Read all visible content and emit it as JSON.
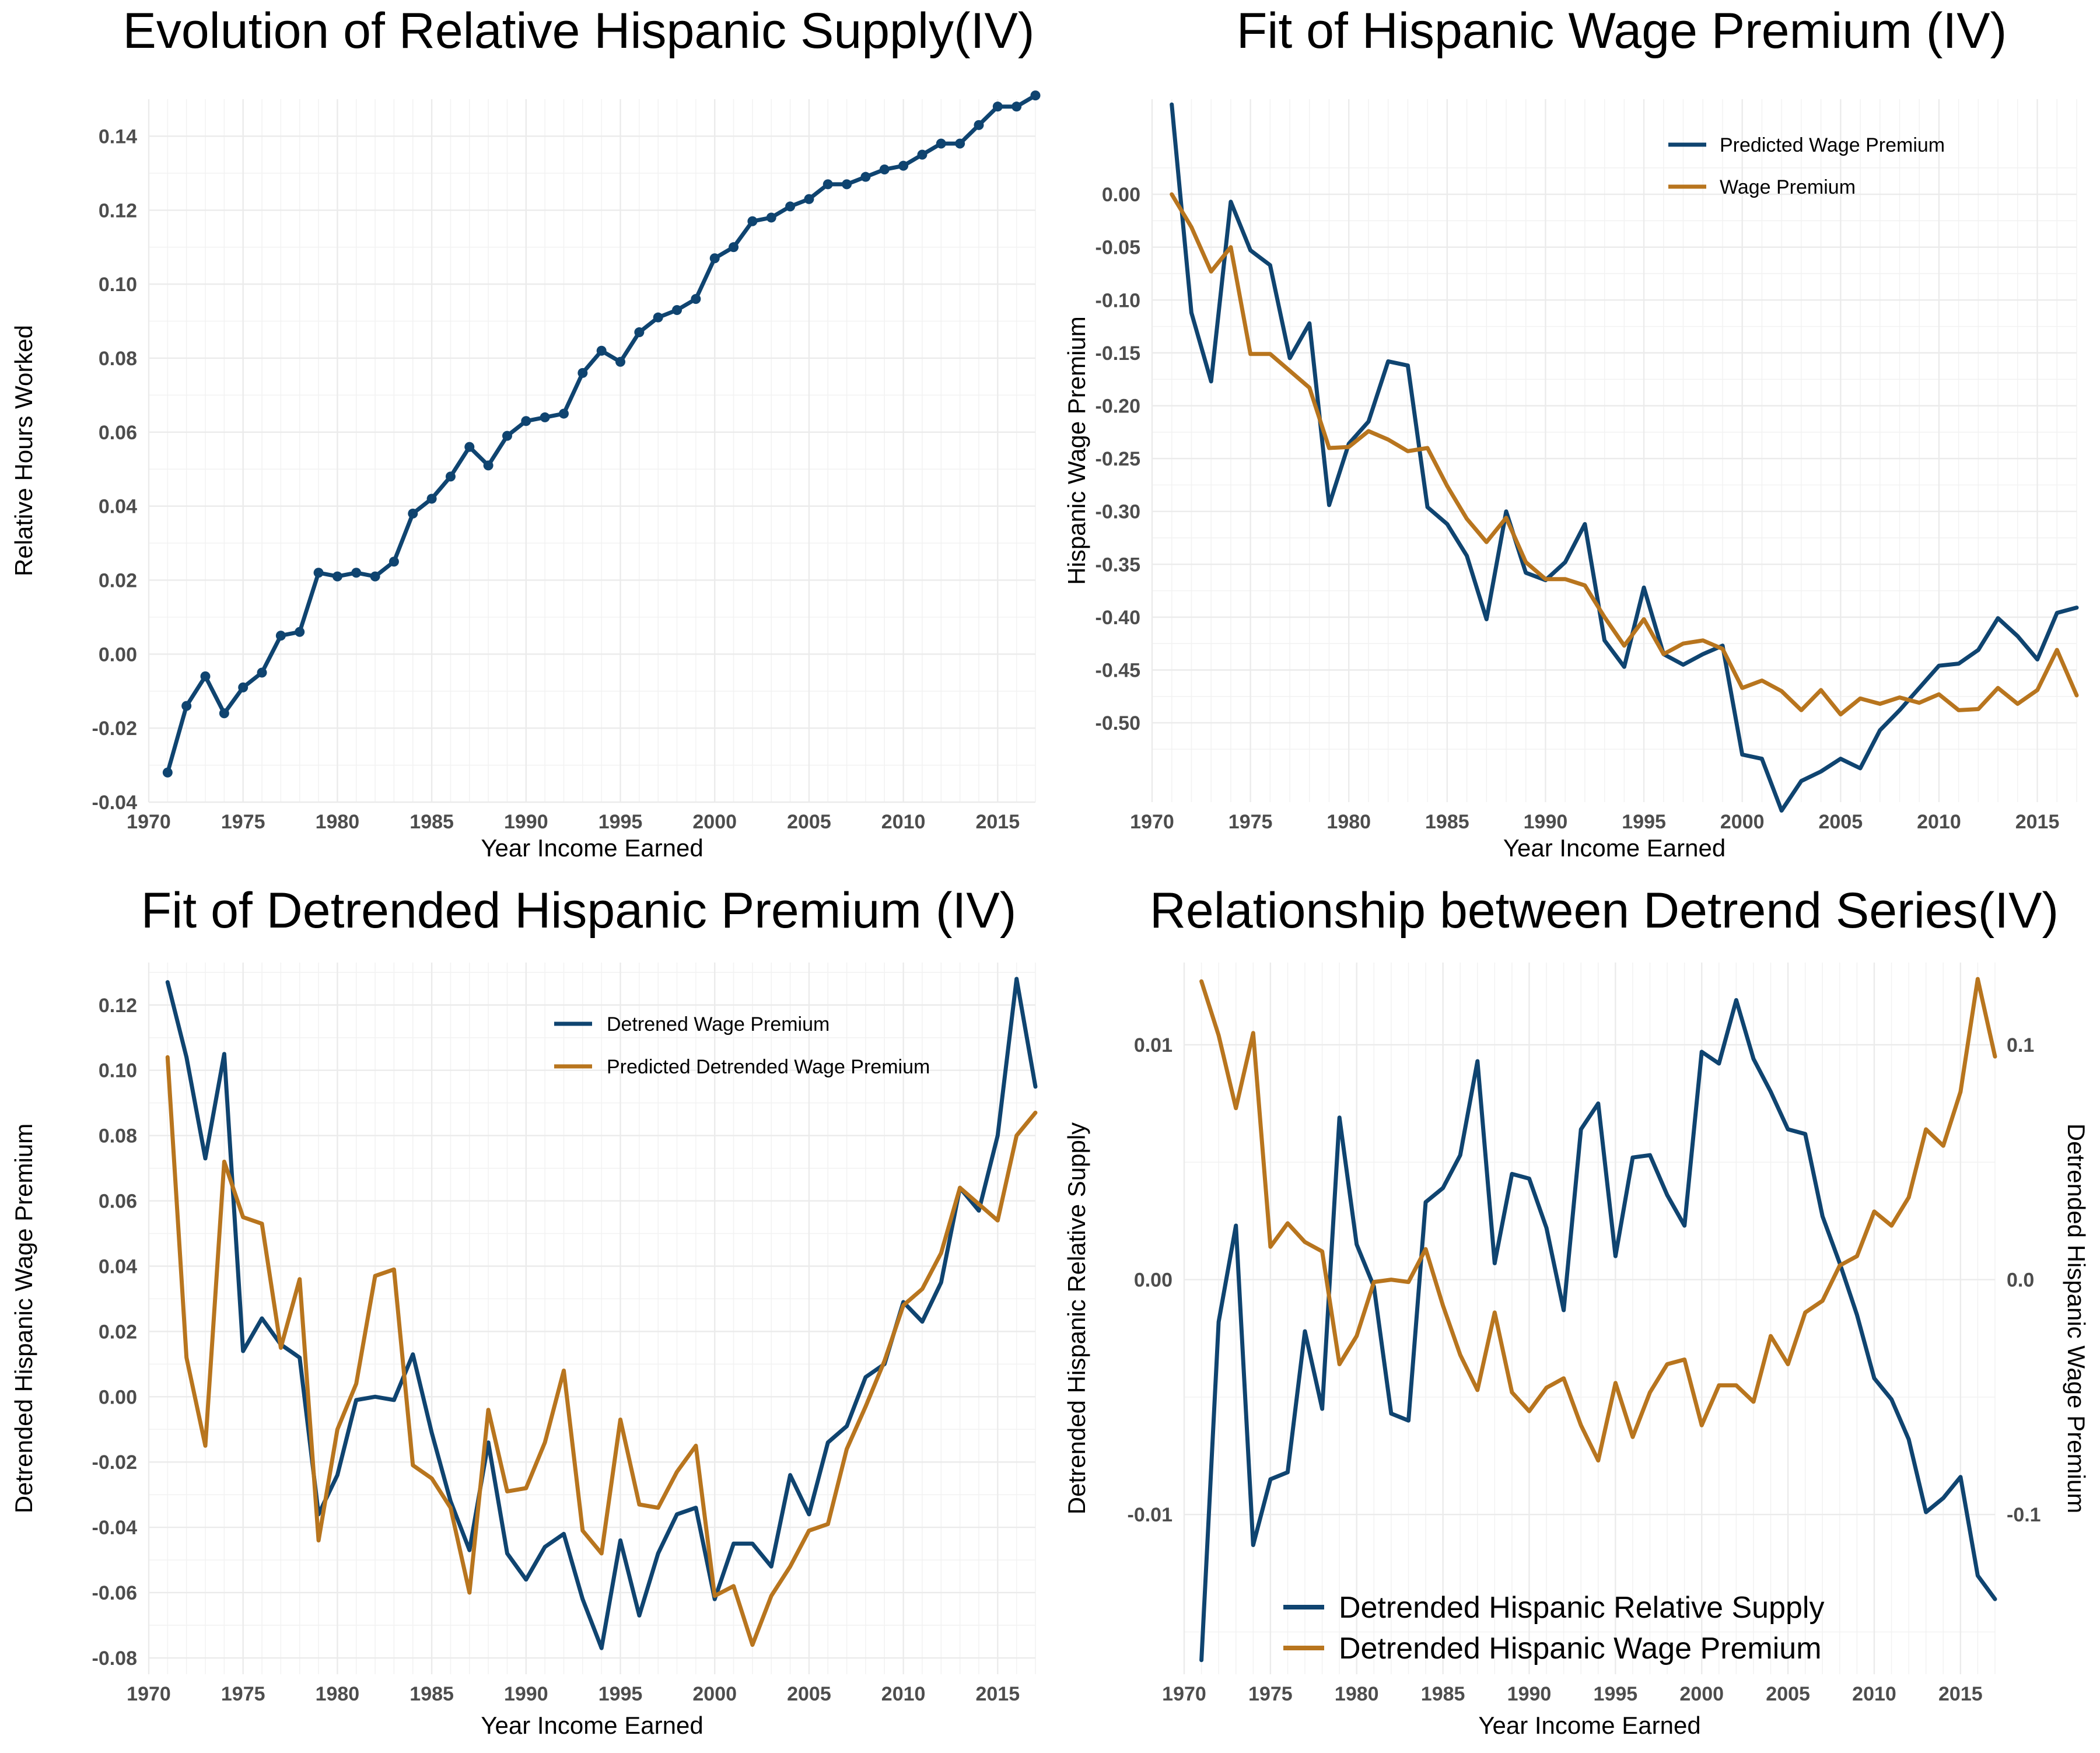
{
  "colors": {
    "blue": "#0f4470",
    "orange": "#b8751e"
  },
  "chart_data": [
    {
      "id": "supply",
      "type": "line",
      "title": "Evolution of Relative Hispanic Supply(IV)",
      "xlabel": "Year Income Earned",
      "ylabel": "Relative Hours Worked",
      "xlim": [
        1970,
        2017
      ],
      "ylim": [
        -0.04,
        0.15
      ],
      "xticks": [
        1970,
        1975,
        1980,
        1985,
        1990,
        1995,
        2000,
        2005,
        2010,
        2015
      ],
      "yticks": [
        -0.04,
        -0.02,
        0.0,
        0.02,
        0.04,
        0.06,
        0.08,
        0.1,
        0.12,
        0.14
      ],
      "markers": true,
      "x": [
        1971,
        1972,
        1973,
        1974,
        1975,
        1976,
        1977,
        1978,
        1979,
        1980,
        1981,
        1982,
        1983,
        1984,
        1985,
        1986,
        1987,
        1988,
        1989,
        1990,
        1991,
        1992,
        1993,
        1994,
        1995,
        1996,
        1997,
        1998,
        1999,
        2000,
        2001,
        2002,
        2003,
        2004,
        2005,
        2006,
        2007,
        2008,
        2009,
        2010,
        2011,
        2012,
        2013,
        2014,
        2015,
        2016,
        2017
      ],
      "series": [
        {
          "color": "blue",
          "values": [
            -0.032,
            -0.014,
            -0.006,
            -0.016,
            -0.009,
            -0.005,
            0.005,
            0.006,
            0.022,
            0.021,
            0.022,
            0.021,
            0.025,
            0.038,
            0.042,
            0.048,
            0.056,
            0.051,
            0.059,
            0.063,
            0.064,
            0.065,
            0.076,
            0.082,
            0.079,
            0.087,
            0.091,
            0.093,
            0.096,
            0.107,
            0.11,
            0.117,
            0.118,
            0.121,
            0.123,
            0.127,
            0.127,
            0.129,
            0.131,
            0.132,
            0.135,
            0.138,
            0.138,
            0.143,
            0.148,
            0.148,
            0.151
          ]
        }
      ]
    },
    {
      "id": "premium",
      "type": "line",
      "title": "Fit of Hispanic Wage Premium (IV)",
      "xlabel": "Year Income Earned",
      "ylabel": "Hispanic Wage Premium",
      "xlim": [
        1970,
        2017
      ],
      "ylim": [
        -0.575,
        0.09
      ],
      "xticks": [
        1970,
        1975,
        1980,
        1985,
        1990,
        1995,
        2000,
        2005,
        2010,
        2015
      ],
      "yticks": [
        -0.5,
        -0.45,
        -0.4,
        -0.35,
        -0.3,
        -0.25,
        -0.2,
        -0.15,
        -0.1,
        -0.05,
        0.0
      ],
      "legend": {
        "position": "top-right",
        "entries": [
          "Predicted Wage Premium",
          "Wage Premium"
        ]
      },
      "x": [
        1971,
        1972,
        1973,
        1974,
        1975,
        1976,
        1977,
        1978,
        1979,
        1980,
        1981,
        1982,
        1983,
        1984,
        1985,
        1986,
        1987,
        1988,
        1989,
        1990,
        1991,
        1992,
        1993,
        1994,
        1995,
        1996,
        1997,
        1998,
        1999,
        2000,
        2001,
        2002,
        2003,
        2004,
        2005,
        2006,
        2007,
        2008,
        2009,
        2010,
        2011,
        2012,
        2013,
        2014,
        2015,
        2016,
        2017
      ],
      "series": [
        {
          "name": "Predicted Wage Premium",
          "color": "blue",
          "values": [
            0.085,
            -0.112,
            -0.177,
            -0.007,
            -0.053,
            -0.067,
            -0.155,
            -0.122,
            -0.294,
            -0.236,
            -0.215,
            -0.158,
            -0.162,
            -0.296,
            -0.312,
            -0.342,
            -0.402,
            -0.3,
            -0.358,
            -0.365,
            -0.348,
            -0.312,
            -0.422,
            -0.447,
            -0.372,
            -0.435,
            -0.445,
            -0.435,
            -0.427,
            -0.53,
            -0.534,
            -0.583,
            -0.555,
            -0.546,
            -0.534,
            -0.543,
            -0.507,
            -0.488,
            -0.467,
            -0.446,
            -0.444,
            -0.431,
            -0.401,
            -0.418,
            -0.44,
            -0.396,
            -0.391
          ]
        },
        {
          "name": "Wage Premium",
          "color": "orange",
          "values": [
            0.0,
            -0.031,
            -0.073,
            -0.05,
            -0.151,
            -0.151,
            -0.167,
            -0.183,
            -0.24,
            -0.239,
            -0.224,
            -0.232,
            -0.243,
            -0.24,
            -0.276,
            -0.307,
            -0.329,
            -0.306,
            -0.348,
            -0.364,
            -0.364,
            -0.37,
            -0.4,
            -0.427,
            -0.402,
            -0.435,
            -0.425,
            -0.422,
            -0.43,
            -0.467,
            -0.46,
            -0.47,
            -0.488,
            -0.469,
            -0.492,
            -0.477,
            -0.482,
            -0.476,
            -0.481,
            -0.473,
            -0.488,
            -0.487,
            -0.467,
            -0.482,
            -0.469,
            -0.431,
            -0.474
          ]
        }
      ]
    },
    {
      "id": "detrended",
      "type": "line",
      "title": "Fit of Detrended Hispanic Premium (IV)",
      "xlabel": "Year Income Earned",
      "ylabel": "Detrended Hispanic Wage Premium",
      "xlim": [
        1970,
        2017
      ],
      "ylim": [
        -0.085,
        0.133
      ],
      "xticks": [
        1970,
        1975,
        1980,
        1985,
        1990,
        1995,
        2000,
        2005,
        2010,
        2015
      ],
      "yticks": [
        -0.08,
        -0.06,
        -0.04,
        -0.02,
        0.0,
        0.02,
        0.04,
        0.06,
        0.08,
        0.1,
        0.12
      ],
      "legend": {
        "position": "top-right",
        "entries": [
          "Detrened Wage Premium",
          "Predicted Detrended Wage Premium"
        ]
      },
      "x": [
        1971,
        1972,
        1973,
        1974,
        1975,
        1976,
        1977,
        1978,
        1979,
        1980,
        1981,
        1982,
        1983,
        1984,
        1985,
        1986,
        1987,
        1988,
        1989,
        1990,
        1991,
        1992,
        1993,
        1994,
        1995,
        1996,
        1997,
        1998,
        1999,
        2000,
        2001,
        2002,
        2003,
        2004,
        2005,
        2006,
        2007,
        2008,
        2009,
        2010,
        2011,
        2012,
        2013,
        2014,
        2015,
        2016,
        2017
      ],
      "series": [
        {
          "name": "Detrened Wage Premium",
          "color": "blue",
          "values": [
            0.127,
            0.104,
            0.073,
            0.105,
            0.014,
            0.024,
            0.016,
            0.012,
            -0.036,
            -0.024,
            -0.001,
            0.0,
            -0.001,
            0.013,
            -0.011,
            -0.032,
            -0.047,
            -0.014,
            -0.048,
            -0.056,
            -0.046,
            -0.042,
            -0.062,
            -0.077,
            -0.044,
            -0.067,
            -0.048,
            -0.036,
            -0.034,
            -0.062,
            -0.045,
            -0.045,
            -0.052,
            -0.024,
            -0.036,
            -0.014,
            -0.009,
            0.006,
            0.01,
            0.029,
            0.023,
            0.035,
            0.064,
            0.057,
            0.08,
            0.128,
            0.095
          ]
        },
        {
          "name": "Predicted Detrended Wage Premium",
          "color": "orange",
          "values": [
            0.104,
            0.012,
            -0.015,
            0.072,
            0.055,
            0.053,
            0.015,
            0.036,
            -0.044,
            -0.01,
            0.004,
            0.037,
            0.039,
            -0.021,
            -0.025,
            -0.034,
            -0.06,
            -0.004,
            -0.029,
            -0.028,
            -0.014,
            0.008,
            -0.041,
            -0.048,
            -0.007,
            -0.033,
            -0.034,
            -0.023,
            -0.015,
            -0.061,
            -0.058,
            -0.076,
            -0.061,
            -0.052,
            -0.041,
            -0.039,
            -0.016,
            -0.003,
            0.011,
            0.028,
            0.033,
            0.044,
            0.064,
            0.059,
            0.054,
            0.08,
            0.087
          ]
        }
      ]
    },
    {
      "id": "relationship",
      "type": "line",
      "title": "Relationship between Detrend Series(IV)",
      "xlabel": "Year Income Earned",
      "ylabel": "Detrended Hispanic Relative Supply",
      "ylabel_right": "Detrended Hispanic Wage Premium",
      "xlim": [
        1970,
        2017
      ],
      "ylim": [
        -0.0168,
        0.0135
      ],
      "ylim_right": [
        -0.168,
        0.135
      ],
      "xticks": [
        1970,
        1975,
        1980,
        1985,
        1990,
        1995,
        2000,
        2005,
        2010,
        2015
      ],
      "yticks": [
        -0.01,
        0.0,
        0.01
      ],
      "yticks_labels": [
        "-0.01",
        "0.00",
        "0.01"
      ],
      "yticks_right_labels": [
        "-0.1",
        "0.0",
        "0.1"
      ],
      "legend": {
        "position": "bottom-center",
        "entries": [
          "Detrended Hispanic Relative Supply",
          "Detrended Hispanic Wage Premium"
        ]
      },
      "x": [
        1971,
        1972,
        1973,
        1974,
        1975,
        1976,
        1977,
        1978,
        1979,
        1980,
        1981,
        1982,
        1983,
        1984,
        1985,
        1986,
        1987,
        1988,
        1989,
        1990,
        1991,
        1992,
        1993,
        1994,
        1995,
        1996,
        1997,
        1998,
        1999,
        2000,
        2001,
        2002,
        2003,
        2004,
        2005,
        2006,
        2007,
        2008,
        2009,
        2010,
        2011,
        2012,
        2013,
        2014,
        2015,
        2016,
        2017
      ],
      "series": [
        {
          "name": "Detrended Hispanic Relative Supply",
          "color": "blue",
          "axis": "left",
          "values": [
            -0.0162,
            -0.0018,
            0.0023,
            -0.0113,
            -0.0085,
            -0.0082,
            -0.0022,
            -0.0055,
            0.0069,
            0.0015,
            -0.0003,
            -0.0057,
            -0.006,
            0.0033,
            0.0039,
            0.0053,
            0.0093,
            0.0007,
            0.0045,
            0.0043,
            0.0022,
            -0.0013,
            0.0064,
            0.0075,
            0.001,
            0.0052,
            0.0053,
            0.0036,
            0.0023,
            0.0097,
            0.0092,
            0.0119,
            0.0094,
            0.008,
            0.0064,
            0.0062,
            0.0027,
            0.0007,
            -0.0015,
            -0.0042,
            -0.0051,
            -0.0068,
            -0.0099,
            -0.0093,
            -0.0084,
            -0.0126,
            -0.0136
          ]
        },
        {
          "name": "Detrended Hispanic Wage Premium",
          "color": "orange",
          "axis": "right",
          "values": [
            0.127,
            0.104,
            0.073,
            0.105,
            0.014,
            0.024,
            0.016,
            0.012,
            -0.036,
            -0.024,
            -0.001,
            0.0,
            -0.001,
            0.013,
            -0.011,
            -0.032,
            -0.047,
            -0.014,
            -0.048,
            -0.056,
            -0.046,
            -0.042,
            -0.062,
            -0.077,
            -0.044,
            -0.067,
            -0.048,
            -0.036,
            -0.034,
            -0.062,
            -0.045,
            -0.045,
            -0.052,
            -0.024,
            -0.036,
            -0.014,
            -0.009,
            0.006,
            0.01,
            0.029,
            0.023,
            0.035,
            0.064,
            0.057,
            0.08,
            0.128,
            0.095
          ]
        }
      ]
    }
  ]
}
